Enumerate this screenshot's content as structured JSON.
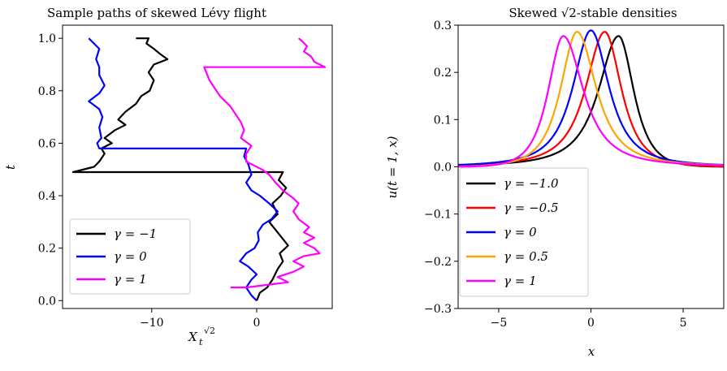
{
  "chart_data": [
    {
      "type": "line",
      "title": "Sample paths of skewed Lévy flight",
      "xlabel": "X_t^{√2}",
      "ylabel": "t",
      "xlim": [
        -18.5,
        7.2
      ],
      "ylim": [
        -0.03,
        1.05
      ],
      "xticks": [
        {
          "v": -10,
          "label": "−10"
        },
        {
          "v": 0,
          "label": "0"
        }
      ],
      "yticks": [
        {
          "v": 0.0,
          "label": "0.0"
        },
        {
          "v": 0.2,
          "label": "0.2"
        },
        {
          "v": 0.4,
          "label": "0.4"
        },
        {
          "v": 0.6,
          "label": "0.6"
        },
        {
          "v": 0.8,
          "label": "0.8"
        },
        {
          "v": 1.0,
          "label": "1.0"
        }
      ],
      "grid": false,
      "legend": "lower-left",
      "series": [
        {
          "name": "γ = −1",
          "color": "#000000",
          "points": [
            [
              0,
              0
            ],
            [
              0.3,
              0.03
            ],
            [
              1.0,
              0.05
            ],
            [
              1.5,
              0.08
            ],
            [
              2.0,
              0.12
            ],
            [
              2.5,
              0.15
            ],
            [
              2.2,
              0.18
            ],
            [
              3.0,
              0.21
            ],
            [
              2.4,
              0.24
            ],
            [
              1.8,
              0.27
            ],
            [
              1.2,
              0.3
            ],
            [
              2.0,
              0.33
            ],
            [
              1.5,
              0.37
            ],
            [
              2.3,
              0.4
            ],
            [
              2.8,
              0.43
            ],
            [
              2.1,
              0.46
            ],
            [
              2.5,
              0.49
            ],
            [
              -17.5,
              0.49
            ],
            [
              -15.5,
              0.51
            ],
            [
              -15.0,
              0.53
            ],
            [
              -14.5,
              0.56
            ],
            [
              -14.8,
              0.58
            ],
            [
              -13.8,
              0.6
            ],
            [
              -14.5,
              0.62
            ],
            [
              -13.5,
              0.65
            ],
            [
              -12.5,
              0.67
            ],
            [
              -13.2,
              0.69
            ],
            [
              -12.5,
              0.72
            ],
            [
              -11.5,
              0.75
            ],
            [
              -11.0,
              0.78
            ],
            [
              -10.2,
              0.8
            ],
            [
              -9.8,
              0.84
            ],
            [
              -10.3,
              0.87
            ],
            [
              -9.8,
              0.9
            ],
            [
              -8.5,
              0.92
            ],
            [
              -9.2,
              0.94
            ],
            [
              -9.8,
              0.96
            ],
            [
              -10.5,
              0.98
            ],
            [
              -10.3,
              1.0
            ],
            [
              -11.5,
              1.0
            ]
          ]
        },
        {
          "name": "γ = 0",
          "color": "#0000ff",
          "points": [
            [
              0,
              0
            ],
            [
              -0.5,
              0.02
            ],
            [
              -1.0,
              0.05
            ],
            [
              -0.5,
              0.08
            ],
            [
              0,
              0.1
            ],
            [
              -0.8,
              0.13
            ],
            [
              -1.6,
              0.15
            ],
            [
              -1.0,
              0.18
            ],
            [
              -0.2,
              0.2
            ],
            [
              0.2,
              0.23
            ],
            [
              0.1,
              0.26
            ],
            [
              0.6,
              0.29
            ],
            [
              1.4,
              0.31
            ],
            [
              2.0,
              0.34
            ],
            [
              1.2,
              0.37
            ],
            [
              0.3,
              0.4
            ],
            [
              -0.5,
              0.42
            ],
            [
              -1.0,
              0.45
            ],
            [
              -0.5,
              0.48
            ],
            [
              -0.8,
              0.52
            ],
            [
              -1.2,
              0.55
            ],
            [
              -1.0,
              0.58
            ],
            [
              -15.0,
              0.58
            ],
            [
              -15.2,
              0.6
            ],
            [
              -14.8,
              0.62
            ],
            [
              -15.0,
              0.66
            ],
            [
              -14.7,
              0.7
            ],
            [
              -15.0,
              0.73
            ],
            [
              -16.0,
              0.76
            ],
            [
              -15.0,
              0.79
            ],
            [
              -14.5,
              0.82
            ],
            [
              -15.0,
              0.86
            ],
            [
              -15.0,
              0.89
            ],
            [
              -15.3,
              0.92
            ],
            [
              -15.0,
              0.96
            ],
            [
              -16.0,
              1.0
            ]
          ]
        },
        {
          "name": "γ = 1",
          "color": "#ff00ff",
          "points": [
            [
              -2.5,
              0.05
            ],
            [
              -1.0,
              0.05
            ],
            [
              1.0,
              0.06
            ],
            [
              3.0,
              0.07
            ],
            [
              2.0,
              0.09
            ],
            [
              3.5,
              0.11
            ],
            [
              4.5,
              0.13
            ],
            [
              3.5,
              0.15
            ],
            [
              4.5,
              0.17
            ],
            [
              6.0,
              0.18
            ],
            [
              5.5,
              0.2
            ],
            [
              4.5,
              0.22
            ],
            [
              5.5,
              0.24
            ],
            [
              4.5,
              0.26
            ],
            [
              5.0,
              0.28
            ],
            [
              4.0,
              0.31
            ],
            [
              3.5,
              0.34
            ],
            [
              4.0,
              0.37
            ],
            [
              3.5,
              0.39
            ],
            [
              2.5,
              0.42
            ],
            [
              1.8,
              0.45
            ],
            [
              1.2,
              0.48
            ],
            [
              0.5,
              0.5
            ],
            [
              -1.0,
              0.53
            ],
            [
              -1.0,
              0.56
            ],
            [
              -0.5,
              0.59
            ],
            [
              -1.5,
              0.62
            ],
            [
              -1.2,
              0.65
            ],
            [
              -1.5,
              0.68
            ],
            [
              -2.0,
              0.71
            ],
            [
              -2.5,
              0.74
            ],
            [
              -3.5,
              0.78
            ],
            [
              -4.0,
              0.81
            ],
            [
              -4.5,
              0.84
            ],
            [
              -4.8,
              0.87
            ],
            [
              -5.0,
              0.89
            ],
            [
              6.5,
              0.89
            ],
            [
              5.5,
              0.91
            ],
            [
              5.2,
              0.93
            ],
            [
              4.5,
              0.95
            ],
            [
              4.8,
              0.97
            ],
            [
              4.3,
              0.99
            ],
            [
              4.0,
              1.0
            ]
          ]
        }
      ]
    },
    {
      "type": "line",
      "title": "Skewed √2-stable densities",
      "xlabel": "x",
      "ylabel": "u(t = 1, x)",
      "xlim": [
        -7.2,
        7.2
      ],
      "ylim": [
        -0.3,
        0.3
      ],
      "xticks": [
        {
          "v": -5,
          "label": "−5"
        },
        {
          "v": 0,
          "label": "0"
        },
        {
          "v": 5,
          "label": "5"
        }
      ],
      "yticks": [
        {
          "v": -0.3,
          "label": "−0.3"
        },
        {
          "v": -0.2,
          "label": "−0.2"
        },
        {
          "v": -0.1,
          "label": "−0.1"
        },
        {
          "v": 0.0,
          "label": "0.0"
        },
        {
          "v": 0.1,
          "label": "0.1"
        },
        {
          "v": 0.2,
          "label": "0.2"
        },
        {
          "v": 0.3,
          "label": "0.3"
        }
      ],
      "grid": false,
      "legend": "lower-left",
      "series": [
        {
          "name": "γ = −1.0",
          "color": "#000000",
          "peak_x": 1.5,
          "peak_y": 0.277
        },
        {
          "name": "γ = −0.5",
          "color": "#ff0000",
          "peak_x": 0.75,
          "peak_y": 0.286
        },
        {
          "name": "γ = 0",
          "color": "#0000ff",
          "peak_x": 0.0,
          "peak_y": 0.289
        },
        {
          "name": "γ = 0.5",
          "color": "#ffa500",
          "peak_x": -0.75,
          "peak_y": 0.286
        },
        {
          "name": "γ = 1",
          "color": "#ff00ff",
          "peak_x": -1.5,
          "peak_y": 0.277
        }
      ]
    }
  ]
}
